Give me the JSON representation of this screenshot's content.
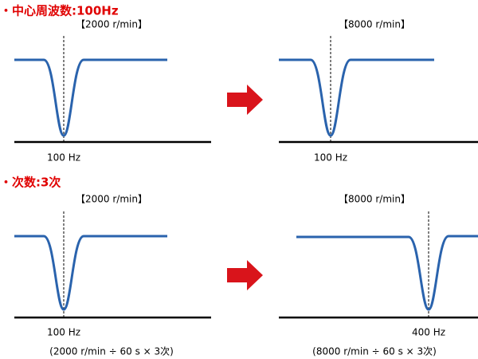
{
  "sections": [
    {
      "heading": "・中心周波数:100Hz",
      "panels": [
        {
          "speed": "【2000 r/min】",
          "freq": "100 Hz"
        },
        {
          "speed": "【8000 r/min】",
          "freq": "100 Hz"
        }
      ]
    },
    {
      "heading": "・次数:3次",
      "panels": [
        {
          "speed": "【2000 r/min】",
          "freq": "100 Hz",
          "formula": "(2000 r/min ÷ 60 s × 3次)"
        },
        {
          "speed": "【8000 r/min】",
          "freq": "400 Hz",
          "formula": "(8000 r/min ÷ 60 s × 3次)"
        }
      ]
    }
  ]
}
